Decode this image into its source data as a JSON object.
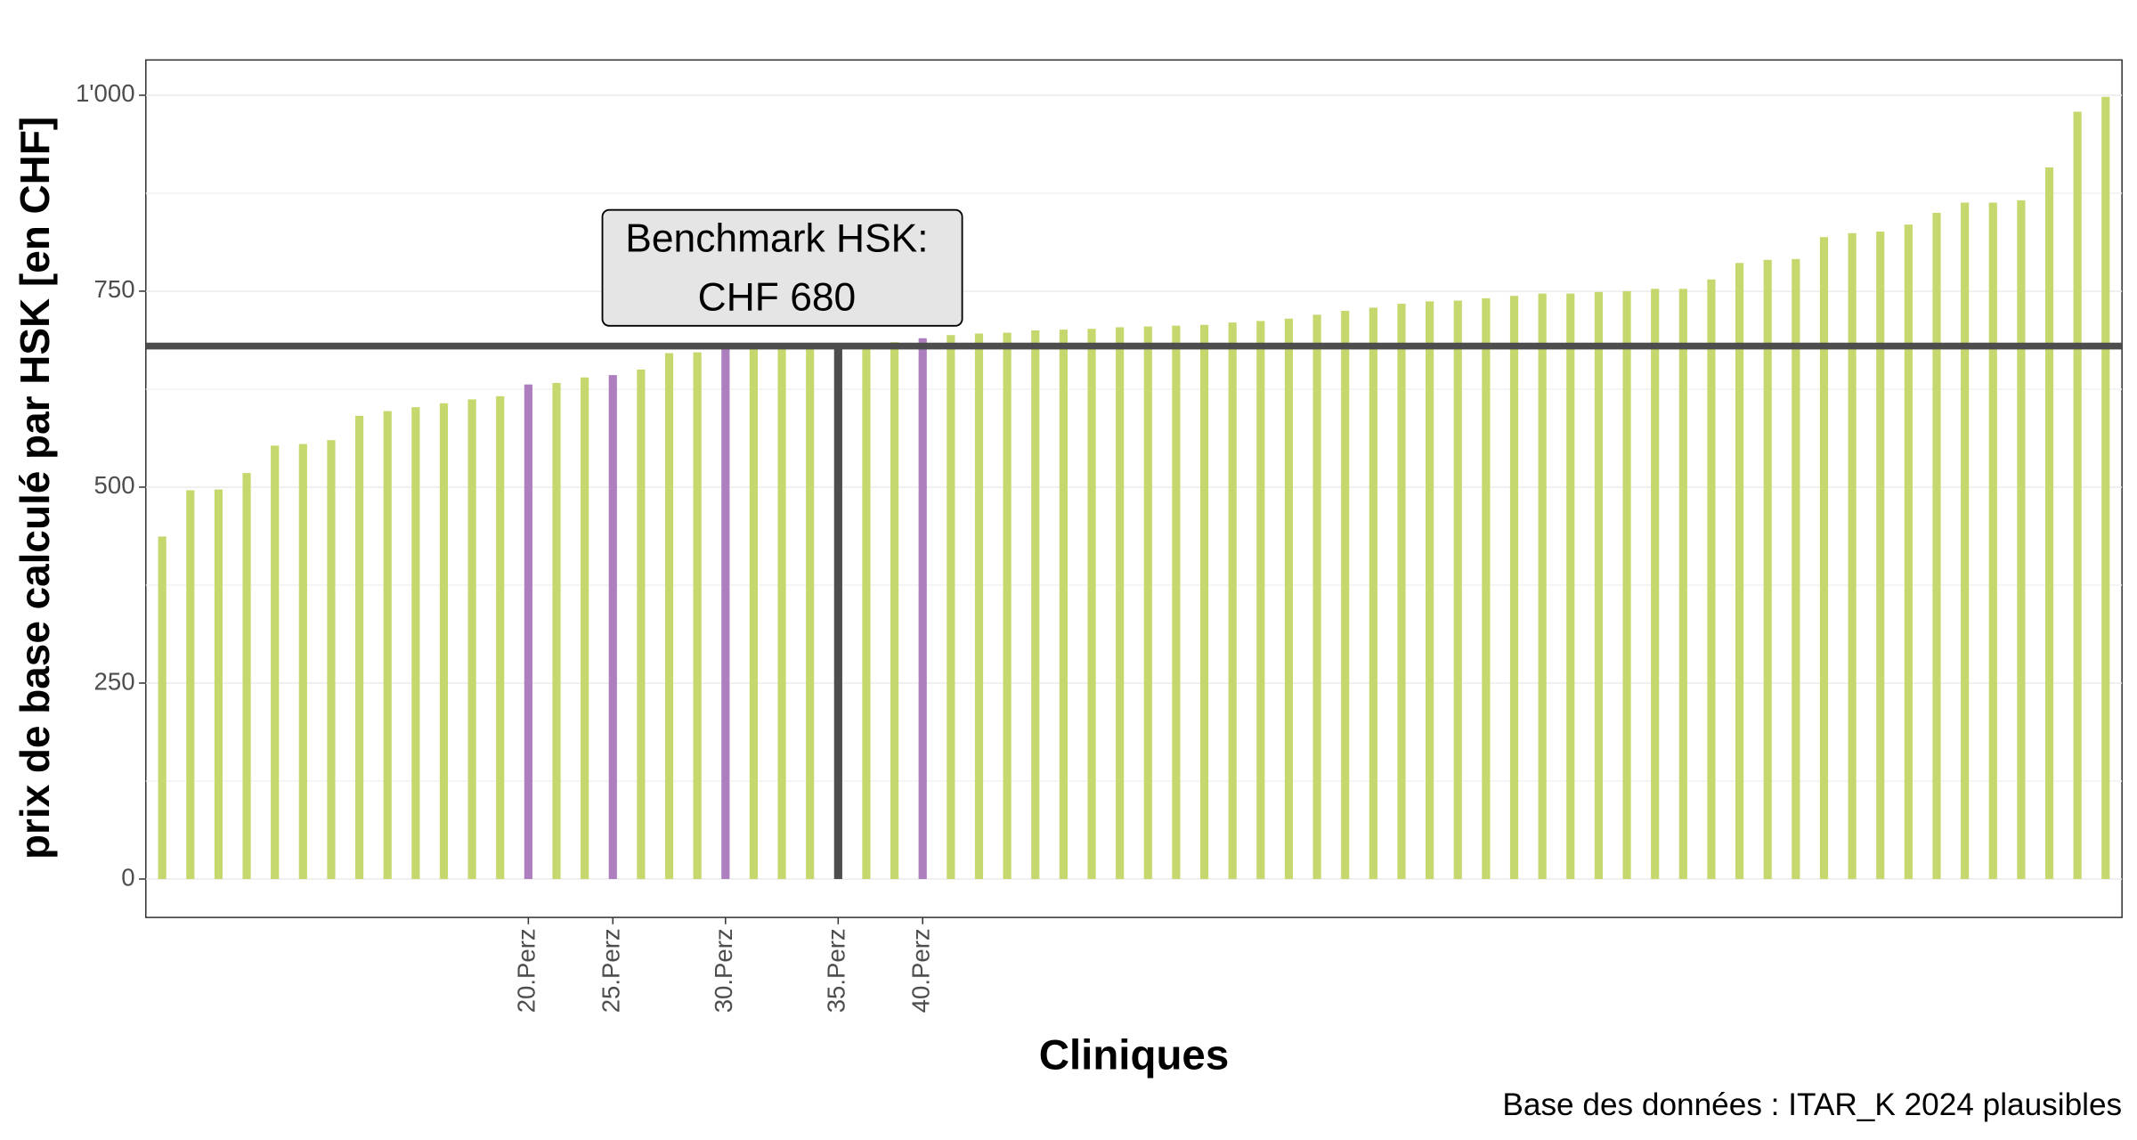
{
  "chart_data": {
    "type": "bar",
    "y_label": "prix de base calculé par HSK [en CHF]",
    "x_label": "Cliniques",
    "caption": "Base des données : ITAR_K 2024 plausibles",
    "categories": [
      null,
      null,
      null,
      null,
      null,
      null,
      null,
      null,
      null,
      null,
      null,
      null,
      null,
      "20.Perz",
      null,
      null,
      "25.Perz",
      null,
      null,
      null,
      "30.Perz",
      null,
      null,
      null,
      "35.Perz",
      null,
      null,
      "40.Perz",
      null,
      null,
      null,
      null,
      null,
      null,
      null,
      null,
      null,
      null,
      null,
      null,
      null,
      null,
      null,
      null,
      null,
      null,
      null,
      null,
      null,
      null,
      null,
      null,
      null,
      null,
      null,
      null,
      null,
      null,
      null,
      null,
      null,
      null,
      null,
      null,
      null,
      null,
      null,
      null,
      null,
      null
    ],
    "values": [
      437,
      496,
      497,
      518,
      553,
      555,
      560,
      591,
      597,
      602,
      607,
      612,
      616,
      631,
      633,
      640,
      643,
      650,
      671,
      672,
      676,
      676,
      677,
      678,
      680,
      681,
      685,
      690,
      694,
      696,
      697,
      700,
      701,
      702,
      704,
      705,
      706,
      707,
      710,
      712,
      715,
      720,
      725,
      729,
      734,
      737,
      738,
      741,
      744,
      747,
      747,
      749,
      750,
      753,
      753,
      765,
      786,
      790,
      791,
      819,
      824,
      826,
      835,
      850,
      863,
      863,
      866,
      908,
      979,
      998
    ],
    "colors": [
      "#c5d86d",
      "#c5d86d",
      "#c5d86d",
      "#c5d86d",
      "#c5d86d",
      "#c5d86d",
      "#c5d86d",
      "#c5d86d",
      "#c5d86d",
      "#c5d86d",
      "#c5d86d",
      "#c5d86d",
      "#c5d86d",
      "#ad7fbf",
      "#c5d86d",
      "#c5d86d",
      "#ad7fbf",
      "#c5d86d",
      "#c5d86d",
      "#c5d86d",
      "#ad7fbf",
      "#c5d86d",
      "#c5d86d",
      "#c5d86d",
      "#4d4d4d",
      "#c5d86d",
      "#c5d86d",
      "#ad7fbf",
      "#c5d86d",
      "#c5d86d",
      "#c5d86d",
      "#c5d86d",
      "#c5d86d",
      "#c5d86d",
      "#c5d86d",
      "#c5d86d",
      "#c5d86d",
      "#c5d86d",
      "#c5d86d",
      "#c5d86d",
      "#c5d86d",
      "#c5d86d",
      "#c5d86d",
      "#c5d86d",
      "#c5d86d",
      "#c5d86d",
      "#c5d86d",
      "#c5d86d",
      "#c5d86d",
      "#c5d86d",
      "#c5d86d",
      "#c5d86d",
      "#c5d86d",
      "#c5d86d",
      "#c5d86d",
      "#c5d86d",
      "#c5d86d",
      "#c5d86d",
      "#c5d86d",
      "#c5d86d",
      "#c5d86d",
      "#c5d86d",
      "#c5d86d",
      "#c5d86d",
      "#c5d86d",
      "#c5d86d",
      "#c5d86d",
      "#c5d86d",
      "#c5d86d",
      "#c5d86d"
    ],
    "benchmark": {
      "value": 680,
      "color": "#4d4d4d",
      "label": [
        "Benchmark HSK:",
        "CHF 680"
      ]
    },
    "ylim": [
      -49,
      1045
    ],
    "yticks": [
      0,
      250,
      500,
      750,
      {
        "value": 1000,
        "label": "1'000"
      }
    ],
    "yminor": [
      125,
      375,
      625,
      875
    ],
    "grid": true
  }
}
